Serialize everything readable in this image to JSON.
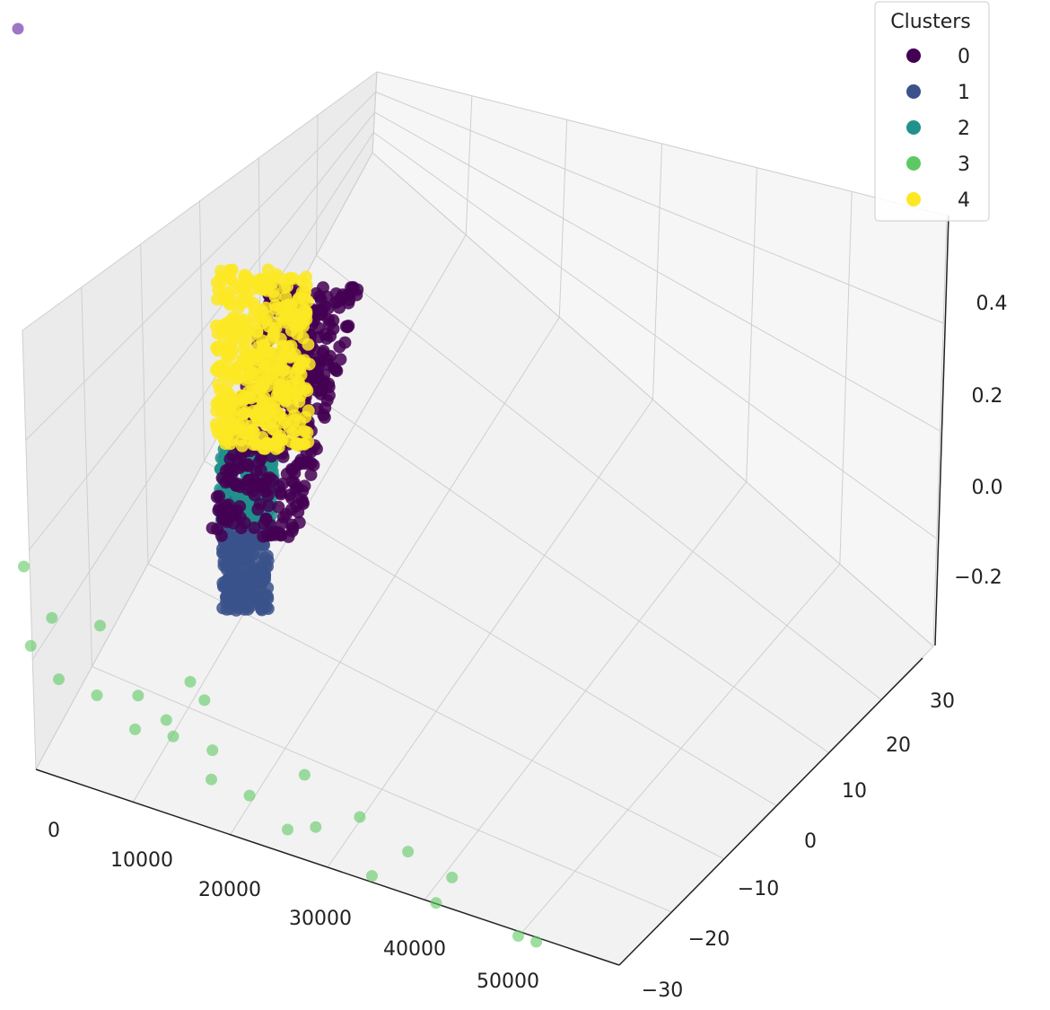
{
  "chart_data": {
    "type": "scatter",
    "projection": "3d",
    "title": "",
    "xlabel": "",
    "ylabel": "",
    "zlabel": "",
    "x_ticks": [
      "0",
      "10000",
      "20000",
      "30000",
      "40000",
      "50000"
    ],
    "y_ticks": [
      "30",
      "20",
      "10",
      "0",
      "−10",
      "−20",
      "−30"
    ],
    "z_ticks": [
      "0.4",
      "0.2",
      "0.0",
      "−0.2"
    ],
    "xlim": [
      0,
      55000
    ],
    "ylim": [
      -30,
      30
    ],
    "zlim": [
      -0.3,
      0.5
    ],
    "grid": true,
    "legend": {
      "title": "Clusters",
      "placement": "top-right",
      "entries": [
        {
          "label": "0",
          "color": "#440154"
        },
        {
          "label": "1",
          "color": "#3b528b"
        },
        {
          "label": "2",
          "color": "#21918c"
        },
        {
          "label": "3",
          "color": "#5ec962"
        },
        {
          "label": "4",
          "color": "#fde725"
        }
      ]
    },
    "stray_marker_color": "#9467bd",
    "series": [
      {
        "name": "0",
        "color": "#440154",
        "points": [
          [
            2000,
            28,
            0.02
          ],
          [
            2600,
            27,
            0.1
          ],
          [
            3000,
            26,
            0.18
          ],
          [
            3500,
            25,
            0.26
          ],
          [
            4000,
            24,
            0.32
          ],
          [
            4500,
            23,
            0.38
          ],
          [
            3200,
            26,
            0.06
          ],
          [
            3800,
            25,
            0.14
          ],
          [
            4200,
            24,
            0.22
          ],
          [
            2400,
            27,
            -0.04
          ],
          [
            2800,
            26,
            -0.1
          ],
          [
            5000,
            22,
            0.43
          ],
          [
            4700,
            22,
            0.3
          ],
          [
            3300,
            24,
            0.0
          ]
        ]
      },
      {
        "name": "1",
        "color": "#3b528b",
        "points": [
          [
            500,
            28,
            -0.26
          ],
          [
            800,
            27,
            -0.22
          ],
          [
            1000,
            26,
            -0.18
          ],
          [
            600,
            28,
            -0.3
          ],
          [
            1200,
            26,
            -0.26
          ],
          [
            900,
            27,
            -0.14
          ],
          [
            1500,
            25,
            -0.2
          ],
          [
            700,
            27,
            -0.1
          ],
          [
            1800,
            24,
            -0.28
          ],
          [
            1100,
            25,
            -0.24
          ]
        ]
      },
      {
        "name": "2",
        "color": "#21918c",
        "points": [
          [
            800,
            28,
            -0.06
          ],
          [
            1000,
            27,
            -0.02
          ],
          [
            1200,
            27,
            -0.08
          ],
          [
            1500,
            26,
            -0.04
          ],
          [
            900,
            28,
            0.02
          ],
          [
            1300,
            26,
            -0.12
          ],
          [
            1700,
            25,
            -0.06
          ]
        ]
      },
      {
        "name": "3",
        "color": "#5ec962",
        "points": [
          [
            3000,
            24,
            -0.06
          ],
          [
            4000,
            22,
            -0.12
          ],
          [
            5000,
            20,
            -0.16
          ],
          [
            6000,
            18,
            -0.22
          ],
          [
            8000,
            16,
            -0.26
          ],
          [
            10000,
            14,
            -0.2
          ],
          [
            12000,
            12,
            -0.28
          ],
          [
            14000,
            10,
            -0.3
          ],
          [
            16000,
            6,
            -0.26
          ],
          [
            18000,
            4,
            -0.3
          ],
          [
            20000,
            0,
            -0.28
          ],
          [
            22000,
            -4,
            -0.3
          ],
          [
            24000,
            -8,
            -0.26
          ],
          [
            26000,
            -12,
            -0.3
          ],
          [
            28000,
            -16,
            -0.28
          ],
          [
            30000,
            -20,
            -0.3
          ],
          [
            32000,
            -22,
            -0.26
          ],
          [
            36000,
            -26,
            -0.3
          ],
          [
            42000,
            -28,
            -0.3
          ],
          [
            50000,
            -30,
            -0.3
          ],
          [
            6000,
            10,
            0.1
          ],
          [
            9000,
            8,
            -0.02
          ],
          [
            11000,
            6,
            -0.1
          ],
          [
            13000,
            2,
            -0.06
          ],
          [
            15000,
            0,
            -0.14
          ],
          [
            17000,
            -6,
            -0.08
          ],
          [
            19000,
            -10,
            -0.18
          ],
          [
            7000,
            14,
            -0.08
          ],
          [
            21000,
            -12,
            -0.2
          ],
          [
            23000,
            -16,
            -0.1
          ],
          [
            25000,
            -14,
            -0.22
          ],
          [
            27000,
            -6,
            -0.14
          ],
          [
            9000,
            18,
            0.06
          ],
          [
            12000,
            18,
            -0.06
          ],
          [
            5000,
            16,
            -0.02
          ],
          [
            33000,
            -18,
            -0.18
          ],
          [
            38000,
            -20,
            -0.22
          ],
          [
            46000,
            -24,
            -0.26
          ],
          [
            52000,
            -30,
            -0.3
          ],
          [
            40000,
            -26,
            -0.22
          ]
        ]
      },
      {
        "name": "4",
        "color": "#fde725",
        "points": [
          [
            800,
            28,
            0.36
          ],
          [
            1000,
            27,
            0.3
          ],
          [
            1200,
            26,
            0.24
          ],
          [
            1500,
            26,
            0.18
          ],
          [
            1800,
            25,
            0.12
          ],
          [
            2000,
            25,
            0.06
          ],
          [
            900,
            28,
            0.42
          ],
          [
            1600,
            26,
            0.46
          ],
          [
            2200,
            24,
            0.02
          ],
          [
            2600,
            23,
            0.08
          ],
          [
            3000,
            22,
            0.04
          ],
          [
            1300,
            27,
            0.5
          ],
          [
            2400,
            25,
            0.3
          ],
          [
            3500,
            22,
            0.14
          ]
        ]
      }
    ],
    "stray_marker": [
      -3000,
      40,
      0.6
    ]
  }
}
